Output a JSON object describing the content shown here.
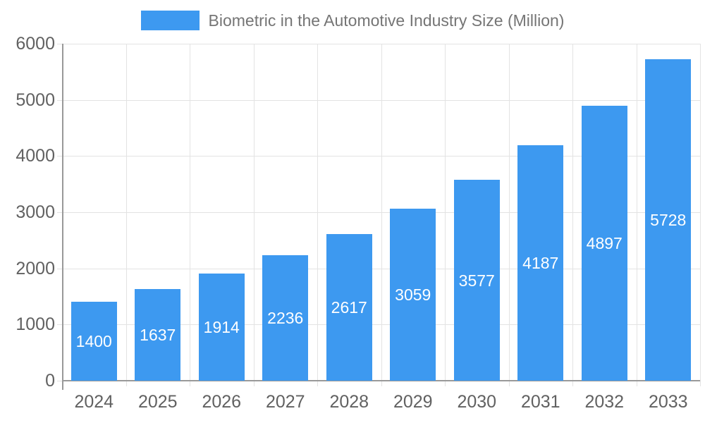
{
  "legend": {
    "label": "Biometric in the Automotive Industry Size (Million)"
  },
  "chart_data": {
    "type": "bar",
    "title": "Biometric in the Automotive Industry Size (Million)",
    "categories": [
      "2024",
      "2025",
      "2026",
      "2027",
      "2028",
      "2029",
      "2030",
      "2031",
      "2032",
      "2033"
    ],
    "values": [
      1400,
      1637,
      1914,
      2236,
      2617,
      3059,
      3577,
      4187,
      4897,
      5728
    ],
    "xlabel": "",
    "ylabel": "",
    "ylim": [
      0,
      6000
    ],
    "yticks": [
      0,
      1000,
      2000,
      3000,
      4000,
      5000,
      6000
    ],
    "grid": true,
    "legend_position": "top",
    "bar_label_position": "center-inside",
    "colors": {
      "bar": "#3D99F0",
      "grid": "#e3e3e3",
      "axis": "#999999",
      "axis_label": "#616161",
      "legend_text": "#757575",
      "bar_label": "#ffffff",
      "background": "#ffffff"
    }
  }
}
